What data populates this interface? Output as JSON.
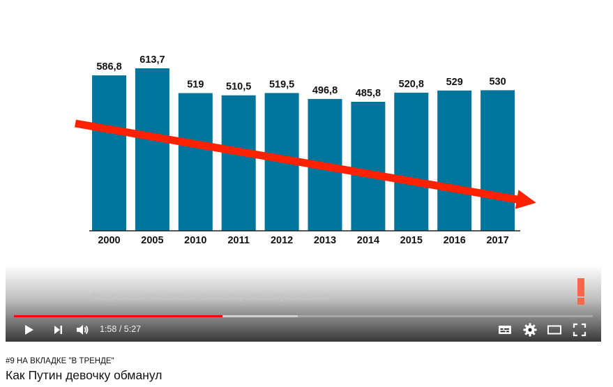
{
  "player": {
    "source_note": "По данным Росстата и министерства образования",
    "time": {
      "current": "1:58",
      "duration": "5:27"
    },
    "progress": {
      "played_fraction": 0.36,
      "loaded_fraction": 0.49
    },
    "progress_colors": {
      "played": "#ff0000",
      "loaded": "#ffffff"
    }
  },
  "video": {
    "trending_label": "#9 НА ВКЛАДКЕ \"В ТРЕНДЕ\"",
    "title": "Как Путин девочку обманул"
  },
  "chart_data": {
    "type": "bar",
    "categories": [
      "2000",
      "2005",
      "2010",
      "2011",
      "2012",
      "2013",
      "2014",
      "2015",
      "2016",
      "2017"
    ],
    "values": [
      586.8,
      613.7,
      519,
      510.5,
      519.5,
      496.8,
      485.8,
      520.8,
      529,
      530
    ],
    "value_labels": [
      "586,8",
      "613,7",
      "519",
      "510,5",
      "519,5",
      "496,8",
      "485,8",
      "520,8",
      "529",
      "530"
    ],
    "title": "",
    "xlabel": "",
    "ylabel": "",
    "bar_color": "#00759b",
    "trend_arrow_color": "#ff2200",
    "trend_arrow": {
      "from_category": "2000",
      "to_category": "2017",
      "direction": "down"
    }
  }
}
